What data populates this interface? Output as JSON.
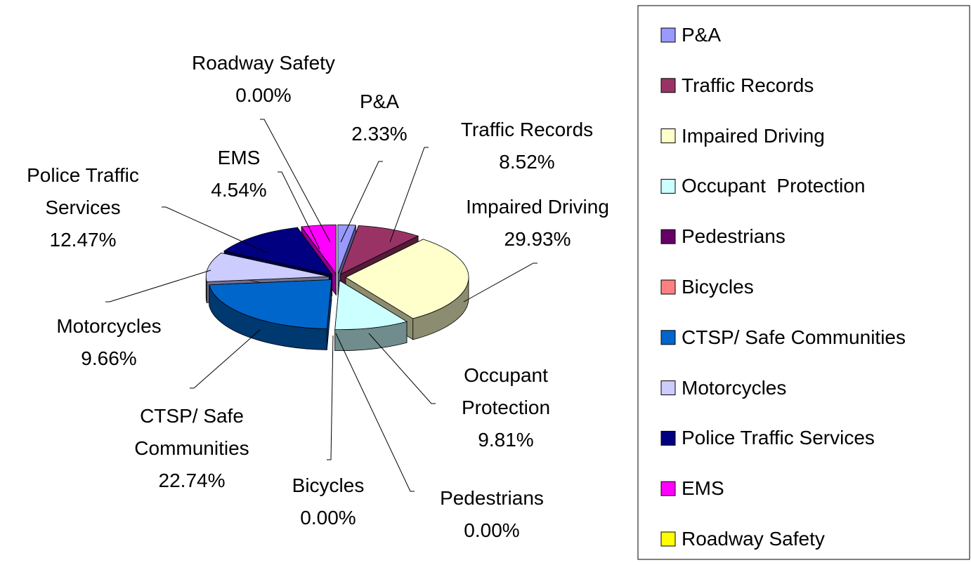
{
  "chart_data": {
    "type": "pie3d",
    "categories": [
      "P&A",
      "Traffic Records",
      "Impaired Driving",
      "Occupant  Protection",
      "Pedestrians",
      "Bicycles",
      "CTSP/ Safe Communities",
      "Motorcycles",
      "Police Traffic Services",
      "EMS",
      "Roadway Safety"
    ],
    "values": [
      2.33,
      8.52,
      29.93,
      9.81,
      0.0,
      0.0,
      22.74,
      9.66,
      12.47,
      4.54,
      0.0
    ],
    "value_labels": [
      "2.33%",
      "8.52%",
      "29.93%",
      "9.81%",
      "0.00%",
      "0.00%",
      "22.74%",
      "9.66%",
      "12.47%",
      "4.54%",
      "0.00%"
    ],
    "colors": [
      "#9999ff",
      "#993366",
      "#ffffcc",
      "#ccffff",
      "#660066",
      "#ff8080",
      "#0066cc",
      "#ccccff",
      "#000080",
      "#ff00ff",
      "#ffff00"
    ],
    "legend": "right"
  }
}
